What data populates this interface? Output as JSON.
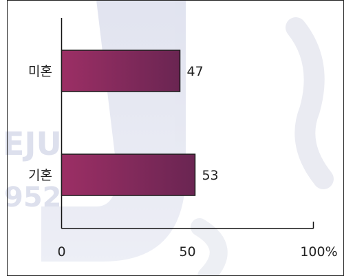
{
  "chart_data": {
    "type": "bar",
    "orientation": "horizontal",
    "categories": [
      "미혼",
      "기혼"
    ],
    "values": [
      47,
      53
    ],
    "value_labels": [
      "47",
      "53"
    ],
    "x_ticks": [
      "0",
      "50",
      "100%"
    ],
    "xlim": [
      0,
      100
    ],
    "title": "",
    "xlabel": "",
    "ylabel": "",
    "grid": false,
    "legend": "none",
    "bar_color": "#8a2a5c"
  }
}
